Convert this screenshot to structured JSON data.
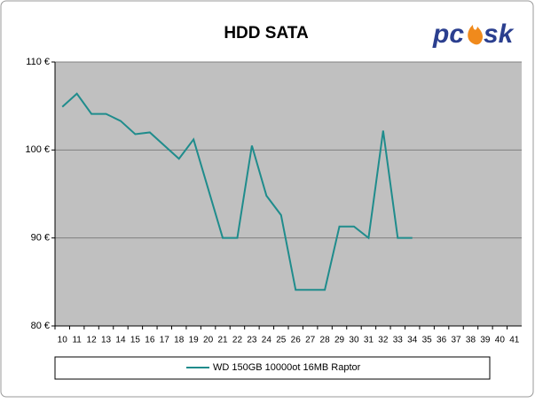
{
  "chart_data": {
    "type": "line",
    "title": "HDD SATA",
    "logo": [
      "pc",
      "sk"
    ],
    "categories": [
      "10",
      "11",
      "12",
      "13",
      "14",
      "15",
      "16",
      "17",
      "18",
      "19",
      "20",
      "21",
      "22",
      "23",
      "24",
      "25",
      "26",
      "27",
      "28",
      "29",
      "30",
      "31",
      "32",
      "33",
      "34",
      "35",
      "36",
      "37",
      "38",
      "39",
      "40",
      "41"
    ],
    "series": [
      {
        "name": "WD 150GB 10000ot 16MB Raptor",
        "color": "#1f8c8c",
        "values": [
          104.9,
          106.4,
          104.1,
          104.1,
          103.3,
          101.8,
          102.0,
          100.5,
          99.0,
          101.2,
          95.6,
          90.0,
          90.0,
          100.5,
          94.8,
          92.6,
          84.1,
          84.1,
          84.1,
          91.3,
          91.3,
          90.0,
          102.2,
          90.0,
          90.0,
          null,
          null,
          null,
          null,
          null,
          null,
          null
        ]
      }
    ],
    "ylim": [
      80,
      110
    ],
    "yticks": [
      {
        "value": 80,
        "label": "80 €"
      },
      {
        "value": 90,
        "label": "90 €"
      },
      {
        "value": 100,
        "label": "100 €"
      },
      {
        "value": 110,
        "label": "110 €"
      }
    ],
    "grid": true
  }
}
